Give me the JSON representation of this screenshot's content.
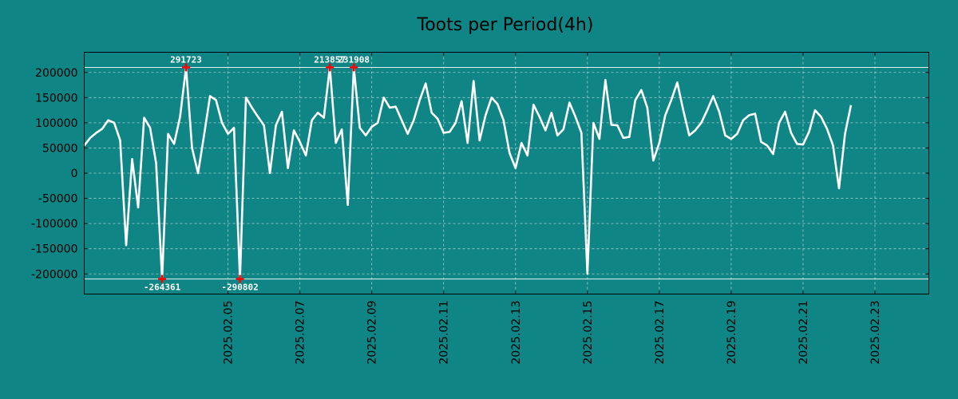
{
  "chart_data": {
    "type": "line",
    "title": "Toots per Period(4h)",
    "xlabel": "",
    "ylabel": "",
    "grid": true,
    "xlim": [
      1738368000000,
      1740398400000
    ],
    "ylim": [
      -240000,
      240000
    ],
    "y_ticks": [
      200000,
      150000,
      100000,
      50000,
      0,
      -50000,
      -100000,
      -150000,
      -200000
    ],
    "y_tick_labels": [
      "200000",
      "150000",
      "100000",
      "50000",
      "0",
      "-50000",
      "-100000",
      "-150000",
      "-200000"
    ],
    "x_ticks": [
      "2025-02-05",
      "2025-02-07",
      "2025-02-09",
      "2025-02-11",
      "2025-02-13",
      "2025-02-15",
      "2025-02-17",
      "2025-02-19",
      "2025-02-21",
      "2025-02-23"
    ],
    "x_tick_labels": [
      "2025.02.05",
      "2025.02.07",
      "2025.02.09",
      "2025.02.11",
      "2025.02.13",
      "2025.02.15",
      "2025.02.17",
      "2025.02.19",
      "2025.02.21",
      "2025.02.23"
    ],
    "clip_range": [
      -210000,
      210000
    ],
    "series": [
      {
        "name": "toots",
        "start": "2025-02-01T00:00:00Z",
        "interval_hours": 4,
        "values": [
          55000,
          70000,
          80000,
          88000,
          105000,
          100000,
          65000,
          -143000,
          28000,
          -68000,
          110000,
          90000,
          20000,
          -210000,
          78000,
          58000,
          112000,
          210000,
          50000,
          0,
          75000,
          153000,
          145000,
          100000,
          78000,
          90000,
          -210000,
          150000,
          130000,
          112000,
          95000,
          0,
          95000,
          122000,
          10000,
          85000,
          62000,
          35000,
          105000,
          120000,
          110000,
          210000,
          60000,
          87000,
          -63000,
          210000,
          90000,
          75000,
          92000,
          100000,
          150000,
          130000,
          132000,
          105000,
          78000,
          105000,
          145000,
          178000,
          120000,
          108000,
          80000,
          82000,
          100000,
          143000,
          60000,
          183000,
          65000,
          115000,
          150000,
          137000,
          105000,
          40000,
          10000,
          60000,
          35000,
          136000,
          112000,
          85000,
          120000,
          75000,
          87000,
          140000,
          112000,
          80000,
          -200000,
          100000,
          68000,
          185000,
          96000,
          95000,
          70000,
          72000,
          145000,
          165000,
          130000,
          25000,
          60000,
          115000,
          145000,
          180000,
          125000,
          75000,
          85000,
          100000,
          125000,
          153000,
          122000,
          75000,
          68000,
          78000,
          105000,
          115000,
          118000,
          62000,
          55000,
          38000,
          100000,
          122000,
          80000,
          58000,
          57000,
          82000,
          125000,
          112000,
          88000,
          55000,
          -30000,
          78000,
          135000
        ]
      }
    ],
    "annotations": [
      {
        "label": "291723",
        "index": 17,
        "value": 210000,
        "placement": "above"
      },
      {
        "label": "213857",
        "index": 41,
        "value": 210000,
        "placement": "above"
      },
      {
        "label": "231908",
        "index": 45,
        "value": 210000,
        "placement": "above"
      },
      {
        "label": "-264361",
        "index": 13,
        "value": -210000,
        "placement": "below"
      },
      {
        "label": "-290802",
        "index": 26,
        "value": -210000,
        "placement": "below"
      }
    ],
    "colors": {
      "background": "#108585",
      "line": "#ffffff",
      "marker": "#ff0000",
      "annotation_text": "#ffffff"
    }
  }
}
